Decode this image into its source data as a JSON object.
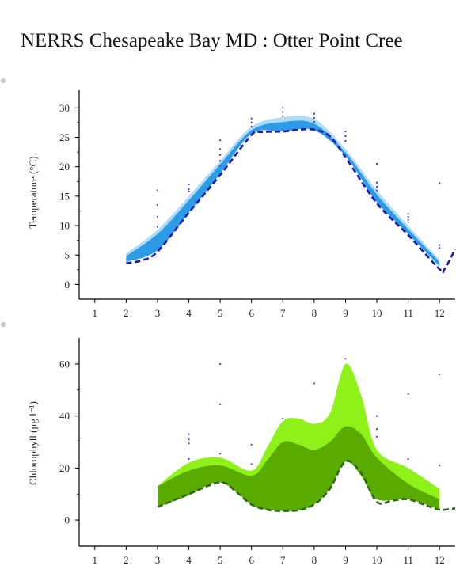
{
  "title": "NERRS Chesapeake Bay MD : Otter Point Cree",
  "chart_data": [
    {
      "type": "area",
      "ylabel": "Temperature (°C)",
      "xlim": [
        0.5,
        12.5
      ],
      "ylim": [
        -2.5,
        33
      ],
      "xticks": [
        1,
        2,
        3,
        4,
        5,
        6,
        7,
        8,
        9,
        10,
        11,
        12
      ],
      "xtick_labels": [
        "1",
        "2",
        "3",
        "4",
        "5",
        "6",
        "7",
        "8",
        "9",
        "10",
        "11",
        "12"
      ],
      "yticks": [
        0,
        5,
        10,
        15,
        20,
        25,
        30
      ],
      "ytick_labels": [
        "0",
        "5",
        "10",
        "15",
        "20",
        "25",
        "30"
      ],
      "colors": {
        "outer": "#aedcf6",
        "inner": "#2e9be6",
        "line": "#1a1ab4",
        "points": "#3333dd"
      },
      "x": [
        2,
        3,
        4,
        5,
        6,
        7,
        8,
        9,
        10,
        11,
        12
      ],
      "band_outer": {
        "upper": [
          5.3,
          9.3,
          15.0,
          21.0,
          26.8,
          28.4,
          28.1,
          23.0,
          16.0,
          10.0,
          4.2
        ],
        "lower": [
          3.8,
          5.8,
          12.2,
          18.8,
          25.6,
          26.0,
          26.2,
          21.8,
          14.0,
          8.6,
          3.1
        ]
      },
      "band_inner": {
        "upper": [
          4.8,
          8.6,
          14.3,
          20.4,
          26.2,
          27.6,
          27.3,
          22.4,
          15.3,
          9.4,
          3.8
        ],
        "lower": [
          3.8,
          5.8,
          12.2,
          18.8,
          25.6,
          26.0,
          26.2,
          21.8,
          14.0,
          8.6,
          3.1
        ]
      },
      "series": [
        {
          "x": [
            2,
            2.5,
            3,
            4,
            5,
            6,
            6.3,
            7,
            7.5,
            8,
            8.5,
            9,
            10,
            11,
            12,
            12.15,
            12.5
          ],
          "values": [
            3.6,
            4.1,
            5.6,
            12.2,
            18.6,
            25.4,
            25.9,
            26.0,
            26.3,
            26.3,
            25.2,
            21.6,
            13.8,
            8.4,
            2.6,
            2.5,
            6.0
          ]
        }
      ],
      "points": [
        {
          "x": 3,
          "y": [
            16.0,
            13.5,
            11.5,
            9.8
          ]
        },
        {
          "x": 4,
          "y": [
            17.0,
            16.2,
            15.8
          ]
        },
        {
          "x": 5,
          "y": [
            24.5,
            23.0,
            22.0,
            21.0,
            20.2
          ]
        },
        {
          "x": 6,
          "y": [
            28.2,
            27.5,
            26.8
          ]
        },
        {
          "x": 7,
          "y": [
            30.0,
            29.3,
            28.6
          ]
        },
        {
          "x": 8,
          "y": [
            29.0,
            28.3,
            27.6
          ]
        },
        {
          "x": 9,
          "y": [
            26.0,
            25.2,
            24.4
          ]
        },
        {
          "x": 10,
          "y": [
            20.5,
            17.3,
            16.6,
            16.0
          ]
        },
        {
          "x": 11,
          "y": [
            12.0,
            11.5,
            11.0,
            10.6
          ]
        },
        {
          "x": 12,
          "y": [
            17.2,
            6.7,
            6.2
          ]
        }
      ]
    },
    {
      "type": "area",
      "ylabel": "Chlorophyll (μg l⁻¹)",
      "xlim": [
        0.5,
        12.5
      ],
      "ylim": [
        -10,
        70
      ],
      "xticks": [
        1,
        2,
        3,
        4,
        5,
        6,
        7,
        8,
        9,
        10,
        11,
        12
      ],
      "xtick_labels": [
        "1",
        "2",
        "3",
        "4",
        "5",
        "6",
        "7",
        "8",
        "9",
        "10",
        "11",
        "12"
      ],
      "yticks": [
        0,
        20,
        40,
        60
      ],
      "ytick_labels": [
        "0",
        "20",
        "40",
        "60"
      ],
      "colors": {
        "outer": "#8ef21a",
        "inner": "#5aab00",
        "line": "#2f6628",
        "points": "#3344dd"
      },
      "x": [
        3,
        4,
        5,
        6,
        6.5,
        7,
        7.5,
        8,
        8.5,
        9,
        9.5,
        10,
        11,
        12
      ],
      "band_outer": {
        "upper": [
          13,
          22,
          24,
          19,
          28,
          38,
          39,
          37,
          41,
          60,
          48,
          27,
          20,
          12
        ],
        "lower": [
          5,
          9.5,
          14.5,
          6,
          4,
          3.5,
          3.8,
          6,
          12,
          22.5,
          17,
          8,
          8,
          4
        ]
      },
      "band_inner": {
        "upper": [
          13,
          19,
          21,
          17,
          23,
          30,
          29,
          27,
          30,
          36,
          33,
          24,
          14,
          8
        ],
        "lower": [
          5,
          9.5,
          14.5,
          6,
          4,
          3.5,
          3.8,
          6,
          12,
          22.5,
          17,
          8,
          8,
          4
        ]
      },
      "series": [
        {
          "x": [
            3,
            4,
            5,
            5.5,
            6,
            6.5,
            7,
            7.5,
            8,
            8.5,
            9,
            9.5,
            10,
            10.5,
            11,
            11.5,
            12,
            12.5
          ],
          "values": [
            5,
            10,
            14.5,
            11,
            6,
            4,
            3.5,
            3.8,
            6,
            12,
            22.5,
            18,
            7,
            7.5,
            8,
            6,
            4,
            4.5
          ]
        }
      ],
      "points": [
        {
          "x": 4,
          "y": [
            33,
            31,
            29.5,
            23.5
          ]
        },
        {
          "x": 5,
          "y": [
            60,
            44.5,
            25.5
          ]
        },
        {
          "x": 6,
          "y": [
            29,
            21.5
          ]
        },
        {
          "x": 7,
          "y": [
            39
          ]
        },
        {
          "x": 8,
          "y": [
            52.5
          ]
        },
        {
          "x": 9,
          "y": [
            62
          ]
        },
        {
          "x": 10,
          "y": [
            40,
            35,
            32
          ]
        },
        {
          "x": 11,
          "y": [
            48.5,
            23.5
          ]
        },
        {
          "x": 12,
          "y": [
            56,
            21
          ]
        }
      ]
    }
  ]
}
